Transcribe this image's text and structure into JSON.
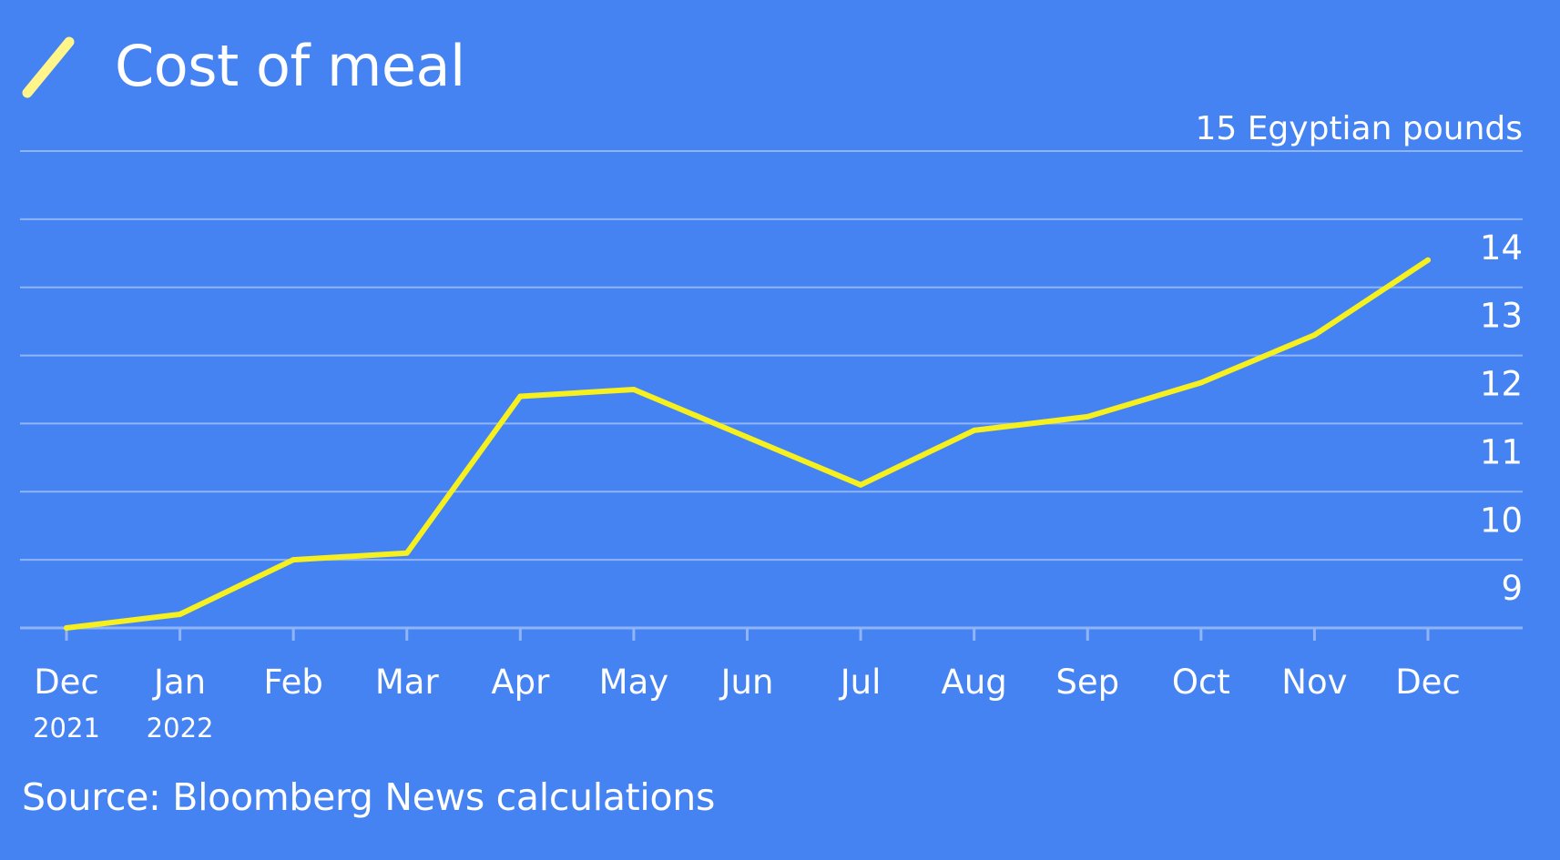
{
  "title": "Cost of meal",
  "source": "Source: Bloomberg News calculations",
  "colors": {
    "background": "#4683f2",
    "line": "#f5f01e",
    "legend_swatch": "#fff58a",
    "gridline": "#8fb4f7",
    "text": "#ffffff"
  },
  "legend_icon": "diagonal-line-swatch-icon",
  "chart_data": {
    "type": "line",
    "title": "Cost of meal",
    "ylabel": "Egyptian pounds",
    "y_unit_label": "Egyptian pounds",
    "y_axis_side": "right",
    "ylim": [
      8,
      15
    ],
    "yticks": [
      15,
      14,
      13,
      12,
      11,
      10,
      9
    ],
    "grid": true,
    "x": [
      {
        "label": "Dec",
        "sub": "2021"
      },
      {
        "label": "Jan",
        "sub": "2022"
      },
      {
        "label": "Feb",
        "sub": ""
      },
      {
        "label": "Mar",
        "sub": ""
      },
      {
        "label": "Apr",
        "sub": ""
      },
      {
        "label": "May",
        "sub": ""
      },
      {
        "label": "Jun",
        "sub": ""
      },
      {
        "label": "Jul",
        "sub": ""
      },
      {
        "label": "Aug",
        "sub": ""
      },
      {
        "label": "Sep",
        "sub": ""
      },
      {
        "label": "Oct",
        "sub": ""
      },
      {
        "label": "Nov",
        "sub": ""
      },
      {
        "label": "Dec",
        "sub": ""
      }
    ],
    "series": [
      {
        "values": [
          8.0,
          8.2,
          9.0,
          9.1,
          11.4,
          11.5,
          10.8,
          10.1,
          10.9,
          11.1,
          11.6,
          12.3,
          13.4
        ]
      }
    ]
  }
}
